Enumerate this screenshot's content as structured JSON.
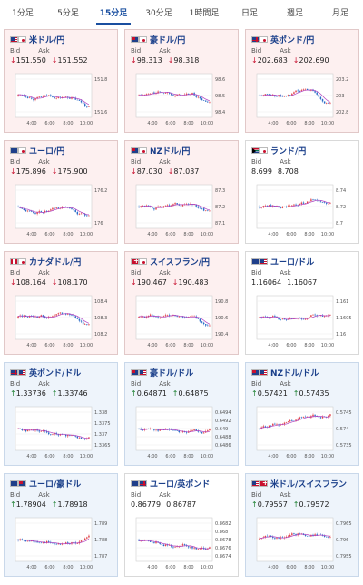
{
  "tabs": [
    {
      "label": "1分足",
      "active": false
    },
    {
      "label": "5分足",
      "active": false
    },
    {
      "label": "15分足",
      "active": true
    },
    {
      "label": "30分足",
      "active": false
    },
    {
      "label": "1時間足",
      "active": false
    },
    {
      "label": "日足",
      "active": false
    },
    {
      "label": "週足",
      "active": false
    },
    {
      "label": "月足",
      "active": false
    }
  ],
  "labels": {
    "bid": "Bid",
    "ask": "Ask"
  },
  "colors": {
    "up_candle": "#e0444a",
    "down_candle": "#2a6cc8",
    "ma": "#b040c0",
    "red_bg": "#fdf0f0",
    "blue_bg": "#eef4fb",
    "title": "#1a3f8a"
  },
  "time_labels": [
    "4:00",
    "6:00",
    "8:00",
    "10:00"
  ],
  "cards": [
    {
      "pair": "米ドル/円",
      "flags": [
        "us",
        "jp"
      ],
      "bid": "151.550",
      "ask": "151.552",
      "dir": "down",
      "bg": "red",
      "yticks": [
        "151.8",
        "151.6"
      ],
      "trend": "down"
    },
    {
      "pair": "豪ドル/円",
      "flags": [
        "au",
        "jp"
      ],
      "bid": "98.313",
      "ask": "98.318",
      "dir": "down",
      "bg": "red",
      "yticks": [
        "98.6",
        "98.5",
        "98.4"
      ],
      "trend": "down"
    },
    {
      "pair": "英ポンド/円",
      "flags": [
        "gb",
        "jp"
      ],
      "bid": "202.683",
      "ask": "202.690",
      "dir": "down",
      "bg": "red",
      "yticks": [
        "203.2",
        "203",
        "202.8"
      ],
      "trend": "down"
    },
    {
      "pair": "ユーロ/円",
      "flags": [
        "eu",
        "jp"
      ],
      "bid": "175.896",
      "ask": "175.900",
      "dir": "down",
      "bg": "red",
      "yticks": [
        "176.2",
        "176"
      ],
      "trend": "down"
    },
    {
      "pair": "NZドル/円",
      "flags": [
        "nz",
        "jp"
      ],
      "bid": "87.030",
      "ask": "87.037",
      "dir": "down",
      "bg": "red",
      "yticks": [
        "87.3",
        "87.2",
        "87.1"
      ],
      "trend": "down"
    },
    {
      "pair": "ランド/円",
      "flags": [
        "za",
        "jp"
      ],
      "bid": "8.699",
      "ask": "8.708",
      "dir": "none",
      "bg": "white",
      "yticks": [
        "8.74",
        "8.72",
        "8.7"
      ],
      "trend": "mixed"
    },
    {
      "pair": "カナダドル/円",
      "flags": [
        "ca",
        "jp"
      ],
      "bid": "108.164",
      "ask": "108.170",
      "dir": "down",
      "bg": "red",
      "yticks": [
        "108.4",
        "108.3",
        "108.2"
      ],
      "trend": "down"
    },
    {
      "pair": "スイスフラン/円",
      "flags": [
        "ch",
        "jp"
      ],
      "bid": "190.467",
      "ask": "190.483",
      "dir": "down",
      "bg": "red",
      "yticks": [
        "190.8",
        "190.6",
        "190.4"
      ],
      "trend": "down"
    },
    {
      "pair": "ユーロ/ドル",
      "flags": [
        "eu",
        "us"
      ],
      "bid": "1.16064",
      "ask": "1.16067",
      "dir": "none",
      "bg": "white",
      "yticks": [
        "1.161",
        "1.1605",
        "1.16"
      ],
      "trend": "mixed"
    },
    {
      "pair": "英ポンド/ドル",
      "flags": [
        "gb",
        "us"
      ],
      "bid": "1.33736",
      "ask": "1.33746",
      "dir": "up",
      "bg": "blue",
      "yticks": [
        "1.338",
        "1.3375",
        "1.337",
        "1.3365"
      ],
      "trend": "flat"
    },
    {
      "pair": "豪ドル/ドル",
      "flags": [
        "au",
        "us"
      ],
      "bid": "0.64871",
      "ask": "0.64875",
      "dir": "up",
      "bg": "blue",
      "yticks": [
        "0.6494",
        "0.6492",
        "0.649",
        "0.6488",
        "0.6486"
      ],
      "trend": "flat"
    },
    {
      "pair": "NZドル/ドル",
      "flags": [
        "nz",
        "us"
      ],
      "bid": "0.57421",
      "ask": "0.57435",
      "dir": "up",
      "bg": "blue",
      "yticks": [
        "0.5745",
        "0.574",
        "0.5735"
      ],
      "trend": "up"
    },
    {
      "pair": "ユーロ/豪ドル",
      "flags": [
        "eu",
        "au"
      ],
      "bid": "1.78904",
      "ask": "1.78918",
      "dir": "up",
      "bg": "blue",
      "yticks": [
        "1.789",
        "1.788",
        "1.787"
      ],
      "trend": "up"
    },
    {
      "pair": "ユーロ/英ポンド",
      "flags": [
        "eu",
        "gb"
      ],
      "bid": "0.86779",
      "ask": "0.86787",
      "dir": "none",
      "bg": "white",
      "yticks": [
        "0.8682",
        "0.868",
        "0.8678",
        "0.8676",
        "0.8674"
      ],
      "trend": "flat"
    },
    {
      "pair": "米ドル/スイスフラン",
      "flags": [
        "us",
        "ch"
      ],
      "bid": "0.79557",
      "ask": "0.79572",
      "dir": "up",
      "bg": "blue",
      "yticks": [
        "0.7965",
        "0.796",
        "0.7955"
      ],
      "trend": "downend"
    }
  ]
}
